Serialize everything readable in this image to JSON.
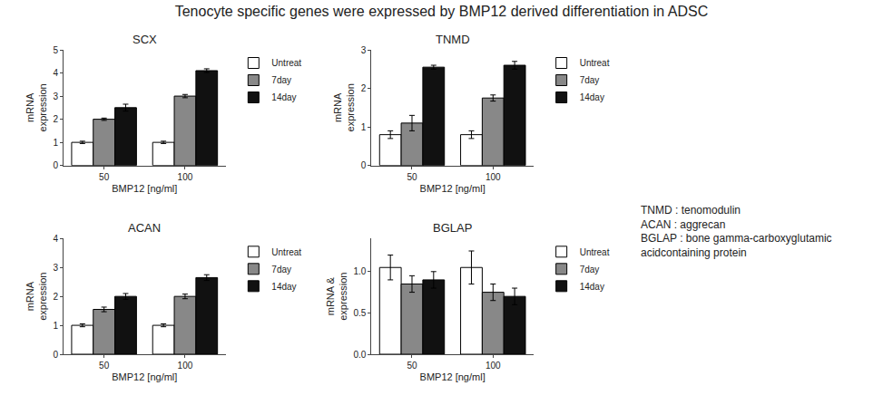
{
  "title": "Tenocyte specific genes were expressed by BMP12 derived differentiation in ADSC",
  "annotations": [
    "TNMD : tenomodulin\nACAN : aggrecan\nBGLAP : bone gamma-carboxyglutamic\nacidcontaining protein"
  ],
  "chart_data": [
    {
      "type": "bar",
      "title": "SCX",
      "xlabel": "BMP12 [ng/ml]",
      "ylabel": "mRNA\nexpression",
      "categories": [
        "50",
        "100"
      ],
      "series": [
        {
          "name": "Untreat",
          "color": "#ffffff",
          "values": [
            1.0,
            1.0
          ],
          "errors": [
            0.05,
            0.05
          ]
        },
        {
          "name": "7day",
          "color": "#888888",
          "values": [
            2.0,
            3.0
          ],
          "errors": [
            0.05,
            0.07
          ]
        },
        {
          "name": "14day",
          "color": "#111111",
          "values": [
            2.5,
            4.1
          ],
          "errors": [
            0.15,
            0.08
          ]
        }
      ],
      "ylim": [
        0,
        5
      ],
      "yticks": [
        0,
        1,
        2,
        3,
        4,
        5
      ],
      "grid": false,
      "legend": "right"
    },
    {
      "type": "bar",
      "title": "TNMD",
      "xlabel": "BMP12 [ng/ml]",
      "ylabel": "mRNA\nexpression",
      "categories": [
        "50",
        "100"
      ],
      "series": [
        {
          "name": "Untreat",
          "color": "#ffffff",
          "values": [
            0.8,
            0.8
          ],
          "errors": [
            0.1,
            0.1
          ]
        },
        {
          "name": "7day",
          "color": "#888888",
          "values": [
            1.1,
            1.75
          ],
          "errors": [
            0.2,
            0.08
          ]
        },
        {
          "name": "14day",
          "color": "#111111",
          "values": [
            2.55,
            2.6
          ],
          "errors": [
            0.05,
            0.1
          ]
        }
      ],
      "ylim": [
        0,
        3
      ],
      "yticks": [
        0,
        1,
        2,
        3
      ],
      "grid": false,
      "legend": "right"
    },
    {
      "type": "bar",
      "title": "ACAN",
      "xlabel": "BMP12 [ng/ml]",
      "ylabel": "mRNA\nexpression",
      "categories": [
        "50",
        "100"
      ],
      "series": [
        {
          "name": "Untreat",
          "color": "#ffffff",
          "values": [
            1.0,
            1.0
          ],
          "errors": [
            0.05,
            0.05
          ]
        },
        {
          "name": "7day",
          "color": "#888888",
          "values": [
            1.55,
            2.0
          ],
          "errors": [
            0.08,
            0.08
          ]
        },
        {
          "name": "14day",
          "color": "#111111",
          "values": [
            2.0,
            2.65
          ],
          "errors": [
            0.1,
            0.1
          ]
        }
      ],
      "ylim": [
        0,
        4
      ],
      "yticks": [
        0,
        1,
        2,
        3,
        4
      ],
      "grid": false,
      "legend": "right"
    },
    {
      "type": "bar",
      "title": "BGLAP",
      "xlabel": "BMP12 [ng/ml]",
      "ylabel": "mRNA &\nexpression",
      "categories": [
        "50",
        "100"
      ],
      "series": [
        {
          "name": "Untreat",
          "color": "#ffffff",
          "values": [
            1.05,
            1.05
          ],
          "errors": [
            0.15,
            0.2
          ]
        },
        {
          "name": "7day",
          "color": "#888888",
          "values": [
            0.85,
            0.75
          ],
          "errors": [
            0.1,
            0.1
          ]
        },
        {
          "name": "14day",
          "color": "#111111",
          "values": [
            0.9,
            0.7
          ],
          "errors": [
            0.1,
            0.1
          ]
        }
      ],
      "ylim": [
        0,
        1.4
      ],
      "yticks": [
        {
          "value": 0,
          "label": "0.0"
        },
        0.5,
        {
          "value": 1,
          "label": "1.0"
        }
      ],
      "grid": false,
      "legend": "right"
    }
  ]
}
